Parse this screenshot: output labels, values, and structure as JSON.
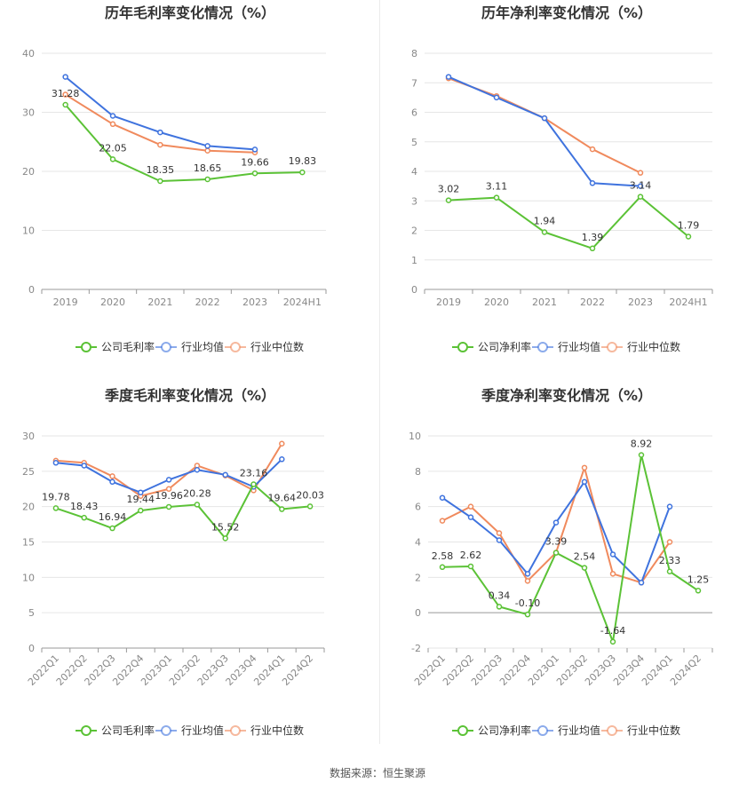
{
  "source": "数据来源：恒生聚源",
  "colors": {
    "company": "#5bc236",
    "industry_avg": "#3f73de",
    "industry_median": "#f08a5d",
    "axis": "#888888",
    "grid": "#e6e6e6"
  },
  "chart_data": [
    {
      "type": "line",
      "title": "历年毛利率变化情况（%）",
      "categories": [
        "2019",
        "2020",
        "2021",
        "2022",
        "2023",
        "2024H1"
      ],
      "ylim": [
        0,
        40
      ],
      "yticks": [
        0,
        10,
        20,
        30,
        40
      ],
      "grid": true,
      "legend": "bottom",
      "series": [
        {
          "name": "公司毛利率",
          "values": [
            31.28,
            22.05,
            18.35,
            18.65,
            19.66,
            19.83
          ],
          "labels": [
            "31.28",
            "22.05",
            "18.35",
            "18.65",
            "19.66",
            "19.83"
          ]
        },
        {
          "name": "行业均值",
          "values": [
            36.0,
            29.4,
            26.6,
            24.3,
            23.7,
            null
          ]
        },
        {
          "name": "行业中位数",
          "values": [
            33.0,
            28.0,
            24.5,
            23.5,
            23.2,
            null
          ]
        }
      ]
    },
    {
      "type": "line",
      "title": "历年净利率变化情况（%）",
      "categories": [
        "2019",
        "2020",
        "2021",
        "2022",
        "2023",
        "2024H1"
      ],
      "ylim": [
        0,
        8
      ],
      "yticks": [
        0,
        1,
        2,
        3,
        4,
        5,
        6,
        7,
        8
      ],
      "grid": true,
      "legend": "bottom",
      "series": [
        {
          "name": "公司净利率",
          "values": [
            3.02,
            3.11,
            1.94,
            1.39,
            3.14,
            1.79
          ],
          "labels": [
            "3.02",
            "3.11",
            "1.94",
            "1.39",
            "3.14",
            "1.79"
          ]
        },
        {
          "name": "行业均值",
          "values": [
            7.2,
            6.5,
            5.8,
            3.6,
            3.5,
            null
          ]
        },
        {
          "name": "行业中位数",
          "values": [
            7.15,
            6.55,
            5.8,
            4.75,
            3.95,
            null
          ]
        }
      ]
    },
    {
      "type": "line",
      "title": "季度毛利率变化情况（%）",
      "categories": [
        "2022Q1",
        "2022Q2",
        "2022Q3",
        "2022Q4",
        "2023Q1",
        "2023Q2",
        "2023Q3",
        "2023Q4",
        "2024Q1",
        "2024Q2"
      ],
      "ylim": [
        0,
        30
      ],
      "yticks": [
        0,
        5,
        10,
        15,
        20,
        25,
        30
      ],
      "grid": true,
      "legend": "bottom",
      "series": [
        {
          "name": "公司毛利率",
          "values": [
            19.78,
            18.43,
            16.94,
            19.44,
            19.96,
            20.28,
            15.52,
            23.16,
            19.64,
            20.03
          ],
          "labels": [
            "19.78",
            "18.43",
            "16.94",
            "19.44",
            "19.96",
            "20.28",
            "15.52",
            "23.16",
            "19.64",
            "20.03"
          ]
        },
        {
          "name": "行业均值",
          "values": [
            26.2,
            25.8,
            23.5,
            22.0,
            23.8,
            25.2,
            24.5,
            22.8,
            26.7,
            null
          ]
        },
        {
          "name": "行业中位数",
          "values": [
            26.5,
            26.2,
            24.3,
            21.5,
            22.5,
            25.8,
            24.4,
            22.3,
            28.9,
            null
          ]
        }
      ]
    },
    {
      "type": "line",
      "title": "季度净利率变化情况（%）",
      "categories": [
        "2022Q1",
        "2022Q2",
        "2022Q3",
        "2022Q4",
        "2023Q1",
        "2023Q2",
        "2023Q3",
        "2023Q4",
        "2024Q1",
        "2024Q2"
      ],
      "ylim": [
        -2,
        10
      ],
      "yticks": [
        -2,
        0,
        2,
        4,
        6,
        8,
        10
      ],
      "grid": true,
      "legend": "bottom",
      "series": [
        {
          "name": "公司净利率",
          "values": [
            2.58,
            2.62,
            0.34,
            -0.1,
            3.39,
            2.54,
            -1.64,
            8.92,
            2.33,
            1.25
          ],
          "labels": [
            "2.58",
            "2.62",
            "0.34",
            "-0.10",
            "3.39",
            "2.54",
            "-1.64",
            "8.92",
            "2.33",
            "1.25"
          ]
        },
        {
          "name": "行业均值",
          "values": [
            6.5,
            5.4,
            4.1,
            2.2,
            5.1,
            7.4,
            3.3,
            1.7,
            6.0,
            null
          ]
        },
        {
          "name": "行业中位数",
          "values": [
            5.2,
            6.0,
            4.5,
            1.8,
            3.4,
            8.2,
            2.2,
            1.7,
            4.0,
            null
          ]
        }
      ]
    }
  ]
}
